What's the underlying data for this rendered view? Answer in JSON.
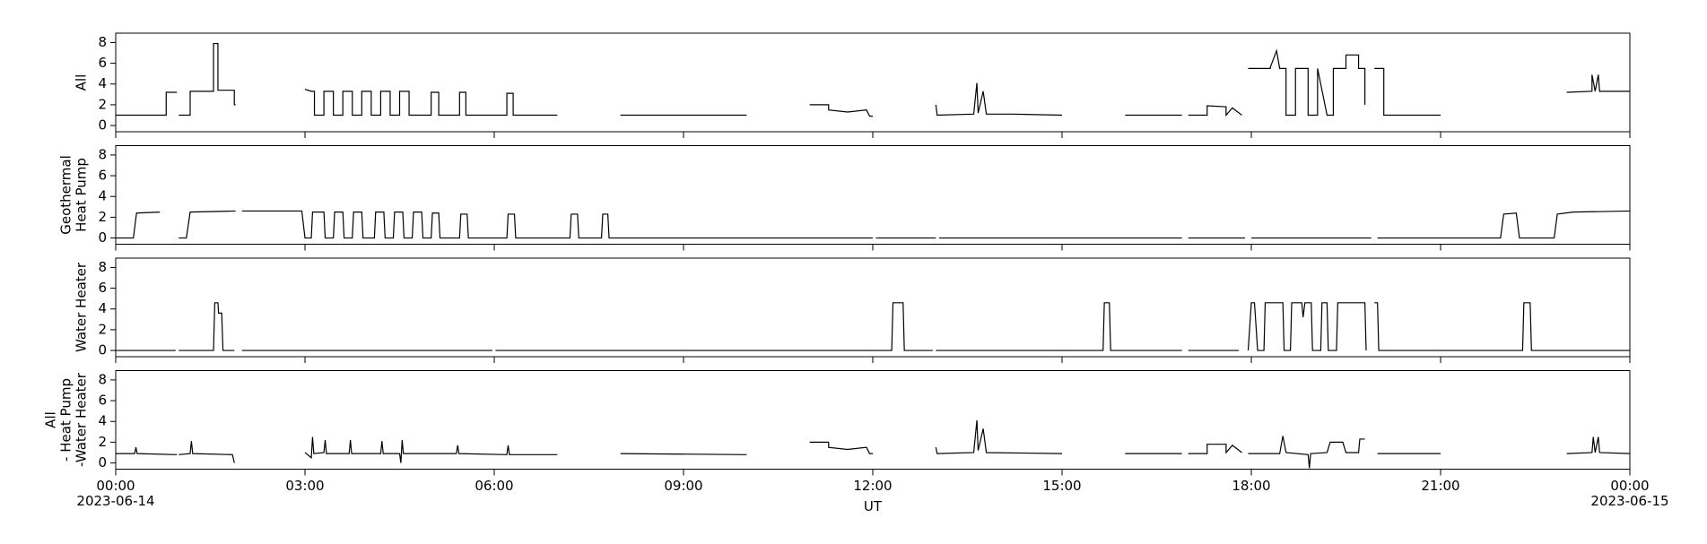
{
  "chart_data": [
    {
      "type": "line",
      "ylabel": [
        "All"
      ],
      "color": "#000000",
      "xlim": [
        0,
        24
      ],
      "ylim": [
        -0.6,
        8.9
      ],
      "yticks": [
        0,
        2,
        4,
        6,
        8
      ],
      "xticks": [
        0,
        3,
        6,
        9,
        12,
        15,
        18,
        21,
        24
      ],
      "x": [
        0,
        0.8,
        0.8,
        0.97,
        0.99,
        1.0,
        1.18,
        1.18,
        1.55,
        1.55,
        1.62,
        1.62,
        1.88,
        1.88,
        1.9,
        2.0,
        3.0,
        3.1,
        3.15,
        3.15,
        3.3,
        3.3,
        3.45,
        3.45,
        3.6,
        3.6,
        3.75,
        3.75,
        3.9,
        3.9,
        4.05,
        4.05,
        4.2,
        4.2,
        4.35,
        4.35,
        4.5,
        4.5,
        4.65,
        4.65,
        5.0,
        5.0,
        5.12,
        5.12,
        5.45,
        5.45,
        5.55,
        5.55,
        6.2,
        6.2,
        6.3,
        6.3,
        7.0,
        7.05,
        8.0,
        10.0,
        10.05,
        11.0,
        11.3,
        11.3,
        11.6,
        11.9,
        11.95,
        12.0,
        12.05,
        13.0,
        13.02,
        13.6,
        13.65,
        13.67,
        13.75,
        13.8,
        14.2,
        15.0,
        15.05,
        16.0,
        16.9,
        16.93,
        17.0,
        17.3,
        17.3,
        17.6,
        17.6,
        17.7,
        17.85,
        17.88,
        17.95,
        18.3,
        18.3,
        18.4,
        18.45,
        18.55,
        18.55,
        18.7,
        18.7,
        18.9,
        18.9,
        19.05,
        19.05,
        19.2,
        19.3,
        19.3,
        19.5,
        19.5,
        19.7,
        19.7,
        19.8,
        19.8,
        19.85,
        19.95,
        20.1,
        20.1,
        21.0,
        21.05,
        23.0,
        23.4,
        23.4,
        23.45,
        23.5,
        23.52,
        24.0
      ],
      "values": [
        1,
        1,
        3.2,
        3.2,
        null,
        1,
        1,
        3.3,
        3.3,
        7.9,
        7.9,
        3.4,
        3.4,
        2,
        2,
        null,
        3.5,
        3.3,
        3.3,
        1,
        1,
        3.3,
        3.3,
        1,
        1,
        3.3,
        3.3,
        1,
        1,
        3.3,
        3.3,
        1,
        1,
        3.3,
        3.3,
        1,
        1,
        3.3,
        3.3,
        1,
        1,
        3.2,
        3.2,
        1,
        1,
        3.2,
        3.2,
        1,
        1,
        3.1,
        3.1,
        1,
        1,
        null,
        1,
        1,
        null,
        2,
        2,
        1.5,
        1.3,
        1.5,
        0.9,
        0.9,
        null,
        2,
        1,
        1.1,
        4.1,
        1.2,
        3.3,
        1.1,
        1.1,
        1,
        null,
        1,
        1,
        null,
        1,
        1,
        1.9,
        1.8,
        1,
        1.7,
        1,
        null,
        5.5,
        5.5,
        5.6,
        7.2,
        5.5,
        5.5,
        1,
        1,
        5.5,
        5.5,
        1,
        1,
        5.5,
        1,
        1,
        5.5,
        5.5,
        6.8,
        6.8,
        5.5,
        5.5,
        2,
        null,
        5.5,
        5.5,
        1,
        1,
        null,
        3.2,
        3.3,
        4.9,
        3.3,
        4.9,
        3.3,
        3.3
      ]
    },
    {
      "type": "line",
      "ylabel": [
        "Geothermal",
        "Heat Pump"
      ],
      "color": "#000000",
      "xlim": [
        0,
        24
      ],
      "ylim": [
        -0.6,
        8.9
      ],
      "yticks": [
        0,
        2,
        4,
        6,
        8
      ],
      "xticks": [
        0,
        3,
        6,
        9,
        12,
        15,
        18,
        21,
        24
      ],
      "x": [
        0,
        0.28,
        0.33,
        0.7,
        0.72,
        1.0,
        1.12,
        1.18,
        1.9,
        1.93,
        2.0,
        2.95,
        3.0,
        3.1,
        3.12,
        3.3,
        3.32,
        3.45,
        3.47,
        3.6,
        3.62,
        3.75,
        3.77,
        3.9,
        3.92,
        4.1,
        4.12,
        4.25,
        4.27,
        4.4,
        4.42,
        4.55,
        4.57,
        4.7,
        4.72,
        4.85,
        4.87,
        5.0,
        5.02,
        5.12,
        5.14,
        5.45,
        5.47,
        5.57,
        5.59,
        6.2,
        6.22,
        6.32,
        6.34,
        7.2,
        7.22,
        7.32,
        7.34,
        7.7,
        7.72,
        7.8,
        7.82,
        12.0,
        12.03,
        12.05,
        13.0,
        13.03,
        13.05,
        16.9,
        16.93,
        17.0,
        17.9,
        17.93,
        18.0,
        19.9,
        19.93,
        20.0,
        21.95,
        22.0,
        22.2,
        22.25,
        22.8,
        22.85,
        23.1,
        24
      ],
      "values": [
        0,
        0,
        2.4,
        2.5,
        null,
        0,
        0,
        2.5,
        2.6,
        null,
        2.6,
        2.6,
        0,
        0,
        2.5,
        2.5,
        0,
        0,
        2.5,
        2.5,
        0,
        0,
        2.5,
        2.5,
        0,
        0,
        2.5,
        2.5,
        0,
        0,
        2.5,
        2.5,
        0,
        0,
        2.5,
        2.5,
        0,
        0,
        2.4,
        2.4,
        0,
        0,
        2.3,
        2.3,
        0,
        0,
        2.3,
        2.3,
        0,
        0,
        2.3,
        2.3,
        0,
        0,
        2.3,
        2.3,
        0,
        0,
        null,
        0,
        0,
        null,
        0,
        0,
        null,
        0,
        0,
        null,
        0,
        0,
        null,
        0,
        0,
        2.3,
        2.4,
        0,
        0,
        2.3,
        2.5,
        2.6
      ]
    },
    {
      "type": "line",
      "ylabel": [
        "Water Heater"
      ],
      "color": "#000000",
      "xlim": [
        0,
        24
      ],
      "ylim": [
        -0.6,
        8.9
      ],
      "yticks": [
        0,
        2,
        4,
        6,
        8
      ],
      "xticks": [
        0,
        3,
        6,
        9,
        12,
        15,
        18,
        21,
        24
      ],
      "x": [
        0,
        0.95,
        0.98,
        1.0,
        1.55,
        1.57,
        1.62,
        1.63,
        1.68,
        1.7,
        1.88,
        1.9,
        2.0,
        5.97,
        6.0,
        6.02,
        12.3,
        12.32,
        12.48,
        12.5,
        12.95,
        12.98,
        13.0,
        15.65,
        15.67,
        15.75,
        15.77,
        16.9,
        16.93,
        17.0,
        17.8,
        17.83,
        17.95,
        18.0,
        18.05,
        18.1,
        18.2,
        18.22,
        18.5,
        18.52,
        18.62,
        18.64,
        18.8,
        18.82,
        18.85,
        18.95,
        18.97,
        19.1,
        19.12,
        19.2,
        19.22,
        19.35,
        19.37,
        19.8,
        19.82,
        19.87,
        19.95,
        20.0,
        20.02,
        22.3,
        22.32,
        22.42,
        22.44,
        24
      ],
      "values": [
        0,
        0,
        null,
        0,
        0,
        4.6,
        4.6,
        3.6,
        3.6,
        0,
        0,
        null,
        0,
        0,
        null,
        0,
        0,
        4.6,
        4.6,
        0,
        0,
        null,
        0,
        0,
        4.6,
        4.6,
        0,
        0,
        null,
        0,
        0,
        null,
        0,
        4.6,
        4.6,
        0,
        0,
        4.6,
        4.6,
        0,
        0,
        4.6,
        4.6,
        3.2,
        4.6,
        4.6,
        0,
        0,
        4.6,
        4.6,
        0,
        0,
        4.6,
        4.6,
        0,
        null,
        4.6,
        4.6,
        0,
        0,
        4.6,
        4.6,
        0,
        0
      ]
    },
    {
      "type": "line",
      "ylabel": [
        "All",
        "- Heat Pump",
        "-Water Heater"
      ],
      "color": "#000000",
      "xlim": [
        0,
        24
      ],
      "ylim": [
        -0.6,
        8.9
      ],
      "yticks": [
        0,
        2,
        4,
        6,
        8
      ],
      "xlabel": "UT",
      "xticks": [
        {
          "value": 0,
          "label": "00:00",
          "date": "2023-06-14"
        },
        {
          "value": 3,
          "label": "03:00"
        },
        {
          "value": 6,
          "label": "06:00"
        },
        {
          "value": 9,
          "label": "09:00"
        },
        {
          "value": 12,
          "label": "12:00"
        },
        {
          "value": 15,
          "label": "15:00"
        },
        {
          "value": 18,
          "label": "18:00"
        },
        {
          "value": 21,
          "label": "21:00"
        },
        {
          "value": 24,
          "label": "00:00",
          "date": "2023-06-15"
        }
      ],
      "x": [
        0,
        0.3,
        0.32,
        0.34,
        0.97,
        0.99,
        1.0,
        1.18,
        1.2,
        1.22,
        1.85,
        1.88,
        1.9,
        3.0,
        3.1,
        3.12,
        3.14,
        3.3,
        3.32,
        3.34,
        3.7,
        3.72,
        3.74,
        4.2,
        4.22,
        4.24,
        4.5,
        4.52,
        4.54,
        4.56,
        5.4,
        5.42,
        5.44,
        6.2,
        6.22,
        6.24,
        7.0,
        7.05,
        8.0,
        10.0,
        10.05,
        11.0,
        11.3,
        11.3,
        11.6,
        11.9,
        11.95,
        12.0,
        12.05,
        13.0,
        13.02,
        13.6,
        13.65,
        13.67,
        13.75,
        13.8,
        15.0,
        15.05,
        16.0,
        16.9,
        16.93,
        17.0,
        17.3,
        17.3,
        17.6,
        17.6,
        17.7,
        17.85,
        17.88,
        17.95,
        18.45,
        18.5,
        18.55,
        18.9,
        18.92,
        18.94,
        19.2,
        19.25,
        19.45,
        19.5,
        19.7,
        19.72,
        19.8,
        19.85,
        20.0,
        21.0,
        21.05,
        23.0,
        23.4,
        23.42,
        23.45,
        23.5,
        23.52,
        24
      ],
      "values": [
        0.9,
        0.9,
        1.5,
        0.9,
        0.8,
        null,
        0.8,
        0.9,
        2.1,
        0.9,
        0.8,
        0,
        null,
        1.0,
        0.5,
        2.5,
        0.9,
        1.0,
        2.2,
        0.9,
        0.9,
        2.2,
        0.9,
        0.9,
        2.1,
        0.9,
        0.9,
        0,
        2.2,
        0.9,
        0.9,
        1.7,
        0.9,
        0.8,
        1.7,
        0.8,
        0.8,
        null,
        0.9,
        0.8,
        null,
        2,
        2,
        1.5,
        1.3,
        1.5,
        0.9,
        0.9,
        null,
        1.5,
        0.9,
        1.0,
        4.1,
        1.2,
        3.3,
        1.0,
        0.9,
        null,
        0.9,
        0.9,
        null,
        0.9,
        0.9,
        1.8,
        1.8,
        1.0,
        1.7,
        1.0,
        null,
        0.9,
        0.9,
        2.6,
        1.0,
        0.8,
        -0.5,
        0.9,
        1.0,
        2.0,
        2.0,
        1.0,
        1.0,
        2.3,
        2.3,
        null,
        0.9,
        0.9,
        null,
        0.9,
        1.0,
        2.5,
        1.0,
        2.5,
        1.0,
        0.9
      ]
    }
  ]
}
